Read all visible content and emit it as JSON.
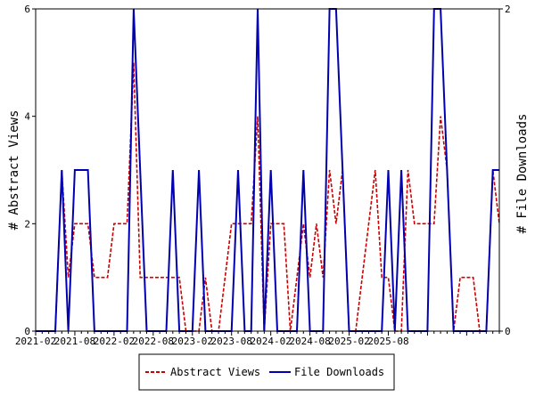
{
  "chart_data": {
    "type": "line",
    "xlabel": "",
    "ylabel_left": "# Abstract Views",
    "ylabel_right": "# File Downloads",
    "ylim_left": [
      0,
      6
    ],
    "ylim_right": [
      0,
      2
    ],
    "yticks_left": [
      "0",
      "2",
      "4",
      "6"
    ],
    "yticks_right": [
      "0",
      "2"
    ],
    "xticks": [
      "2021-02",
      "2021-08",
      "2022-02",
      "2022-08",
      "2023-02",
      "2023-08",
      "2024-02",
      "2024-08",
      "2025-02",
      "2025-08"
    ],
    "grid": false,
    "legend_position": "bottom-center",
    "series": [
      {
        "name": "Abstract Views",
        "axis": "left",
        "color": "#cc0000",
        "style": "dashed",
        "values": [
          0,
          0,
          0,
          0,
          3,
          1,
          2,
          2,
          2,
          1,
          1,
          1,
          2,
          2,
          2,
          5,
          1,
          1,
          1,
          1,
          1,
          1,
          1,
          0,
          0,
          0,
          1,
          0,
          0,
          1,
          2,
          2,
          2,
          2,
          4,
          0,
          2,
          2,
          2,
          0,
          1,
          2,
          1,
          2,
          1,
          3,
          2,
          3,
          0,
          0,
          1,
          2,
          3,
          1,
          1,
          0,
          0,
          3,
          2,
          2,
          2,
          2,
          4,
          3,
          0,
          1,
          1,
          1,
          0,
          0,
          3,
          2
        ]
      },
      {
        "name": "File Downloads",
        "axis": "right",
        "color": "#0000b0",
        "style": "solid",
        "values": [
          0,
          0,
          0,
          0,
          1,
          0,
          1,
          1,
          1,
          0,
          0,
          0,
          0,
          0,
          0,
          2,
          1,
          0,
          0,
          0,
          0,
          1,
          0,
          0,
          0,
          1,
          0,
          0,
          0,
          0,
          0,
          1,
          0,
          0,
          2,
          0,
          1,
          0,
          0,
          0,
          0,
          1,
          0,
          0,
          0,
          2,
          2,
          1,
          0,
          0,
          0,
          0,
          0,
          0,
          1,
          0,
          1,
          0,
          0,
          0,
          0,
          2,
          2,
          1,
          0,
          0,
          0,
          0,
          0,
          0,
          1,
          1
        ]
      }
    ]
  }
}
